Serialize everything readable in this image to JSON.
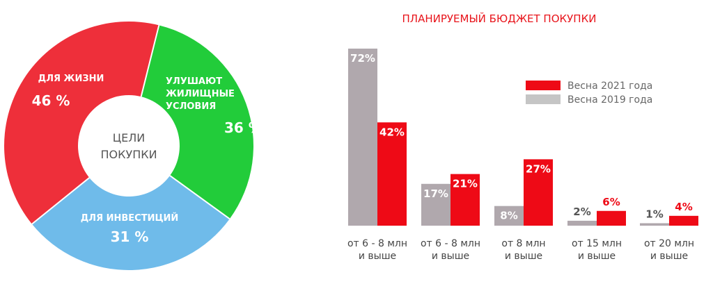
{
  "chart_data": [
    {
      "type": "pie",
      "center_label": [
        "ЦЕЛИ",
        "ПОКУПКИ"
      ],
      "slices": [
        {
          "label_lines": [
            "ДЛЯ ЖИЗНИ"
          ],
          "value_label": "46 %",
          "value": 46,
          "color": "#ee2f3a"
        },
        {
          "label_lines": [
            "УЛУШАЮТ",
            "ЖИЛИЩНЫЕ",
            "УСЛОВИЯ"
          ],
          "value_label": "36 %",
          "value": 36,
          "color": "#22cc3a"
        },
        {
          "label_lines": [
            "ДЛЯ ИНВЕСТИЦИЙ"
          ],
          "value_label": "31 %",
          "value": 31,
          "color": "#6fbbea"
        }
      ]
    },
    {
      "type": "bar",
      "title": "ПЛАНИРУЕМЫЙ БЮДЖЕТ ПОКУПКИ",
      "categories": [
        [
          "от 6 - 8 млн",
          "и выше"
        ],
        [
          "от 6 - 8 млн",
          "и выше"
        ],
        [
          "от 8 млн",
          "и выше"
        ],
        [
          "от 15 млн",
          "и выше"
        ],
        [
          "от 20 млн",
          "и выше"
        ]
      ],
      "series": [
        {
          "name": "Весна 2019 года",
          "color": "#b0a8ad",
          "values": [
            72,
            17,
            8,
            2,
            1
          ],
          "labels": [
            "72%",
            "17%",
            "8%",
            "2%",
            "1%"
          ]
        },
        {
          "name": "Весна 2021 года",
          "color": "#ee0a16",
          "values": [
            42,
            21,
            27,
            6,
            4
          ],
          "labels": [
            "42%",
            "21%",
            "27%",
            "6%",
            "4%"
          ]
        }
      ],
      "legend": [
        {
          "name": "Весна 2021 года",
          "color": "#ee0a16"
        },
        {
          "name": "Весна 2019 года",
          "color": "#c5c5c5"
        }
      ],
      "legend_position": "top-right",
      "grid": false
    }
  ]
}
